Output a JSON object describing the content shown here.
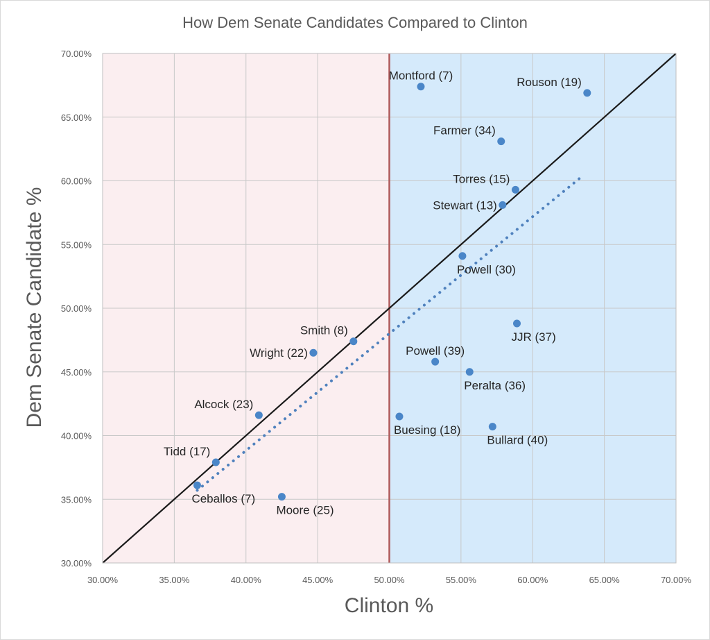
{
  "chart_data": {
    "type": "scatter",
    "title": "How Dem Senate Candidates Compared to Clinton",
    "xlabel": "Clinton %",
    "ylabel": "Dem Senate Candidate %",
    "xlim": [
      0.3,
      0.7
    ],
    "ylim": [
      0.3,
      0.7
    ],
    "x_ticks": [
      "30.00%",
      "35.00%",
      "40.00%",
      "45.00%",
      "50.00%",
      "55.00%",
      "60.00%",
      "65.00%",
      "70.00%"
    ],
    "y_ticks": [
      "30.00%",
      "35.00%",
      "40.00%",
      "45.00%",
      "50.00%",
      "55.00%",
      "60.00%",
      "65.00%",
      "70.00%"
    ],
    "grid": true,
    "shaded_regions": [
      {
        "x_from": 0.3,
        "x_to": 0.5,
        "color": "#fbeef0"
      },
      {
        "x_from": 0.5,
        "x_to": 0.7,
        "color": "#d5eafb"
      }
    ],
    "vertical_line": {
      "x": 0.5,
      "color": "#b05a5a"
    },
    "reference_line": {
      "from": [
        0.3,
        0.3
      ],
      "to": [
        0.7,
        0.7
      ],
      "color": "#1a1a1a"
    },
    "trendline": {
      "from": [
        0.366,
        0.357
      ],
      "to": [
        0.635,
        0.604
      ],
      "style": "dotted",
      "color": "#4f81bd"
    },
    "point_color": "#4a86c8",
    "points": [
      {
        "label": "Montford (7)",
        "x": 0.522,
        "y": 0.674,
        "label_pos": "above"
      },
      {
        "label": "Rouson (19)",
        "x": 0.638,
        "y": 0.669,
        "label_pos": "above-left"
      },
      {
        "label": "Farmer (34)",
        "x": 0.578,
        "y": 0.631,
        "label_pos": "above-left"
      },
      {
        "label": "Torres (15)",
        "x": 0.588,
        "y": 0.593,
        "label_pos": "above-left"
      },
      {
        "label": "Stewart (13)",
        "x": 0.579,
        "y": 0.581,
        "label_pos": "left"
      },
      {
        "label": "Powell (30)",
        "x": 0.551,
        "y": 0.541,
        "label_pos": "below-right"
      },
      {
        "label": "JJR (37)",
        "x": 0.589,
        "y": 0.488,
        "label_pos": "below-right"
      },
      {
        "label": "Powell (39)",
        "x": 0.532,
        "y": 0.458,
        "label_pos": "above"
      },
      {
        "label": "Peralta (36)",
        "x": 0.556,
        "y": 0.45,
        "label_pos": "below-right"
      },
      {
        "label": "Smith (8)",
        "x": 0.475,
        "y": 0.474,
        "label_pos": "above-left"
      },
      {
        "label": "Wright (22)",
        "x": 0.447,
        "y": 0.465,
        "label_pos": "left"
      },
      {
        "label": "Alcock (23)",
        "x": 0.409,
        "y": 0.416,
        "label_pos": "above-left"
      },
      {
        "label": "Buesing (18)",
        "x": 0.507,
        "y": 0.415,
        "label_pos": "below-right"
      },
      {
        "label": "Bullard (40)",
        "x": 0.572,
        "y": 0.407,
        "label_pos": "below-right"
      },
      {
        "label": "Tidd (17)",
        "x": 0.379,
        "y": 0.379,
        "label_pos": "above-left"
      },
      {
        "label": "Ceballos (7)",
        "x": 0.366,
        "y": 0.361,
        "label_pos": "below-right"
      },
      {
        "label": "Moore (25)",
        "x": 0.425,
        "y": 0.352,
        "label_pos": "below-right"
      }
    ]
  }
}
